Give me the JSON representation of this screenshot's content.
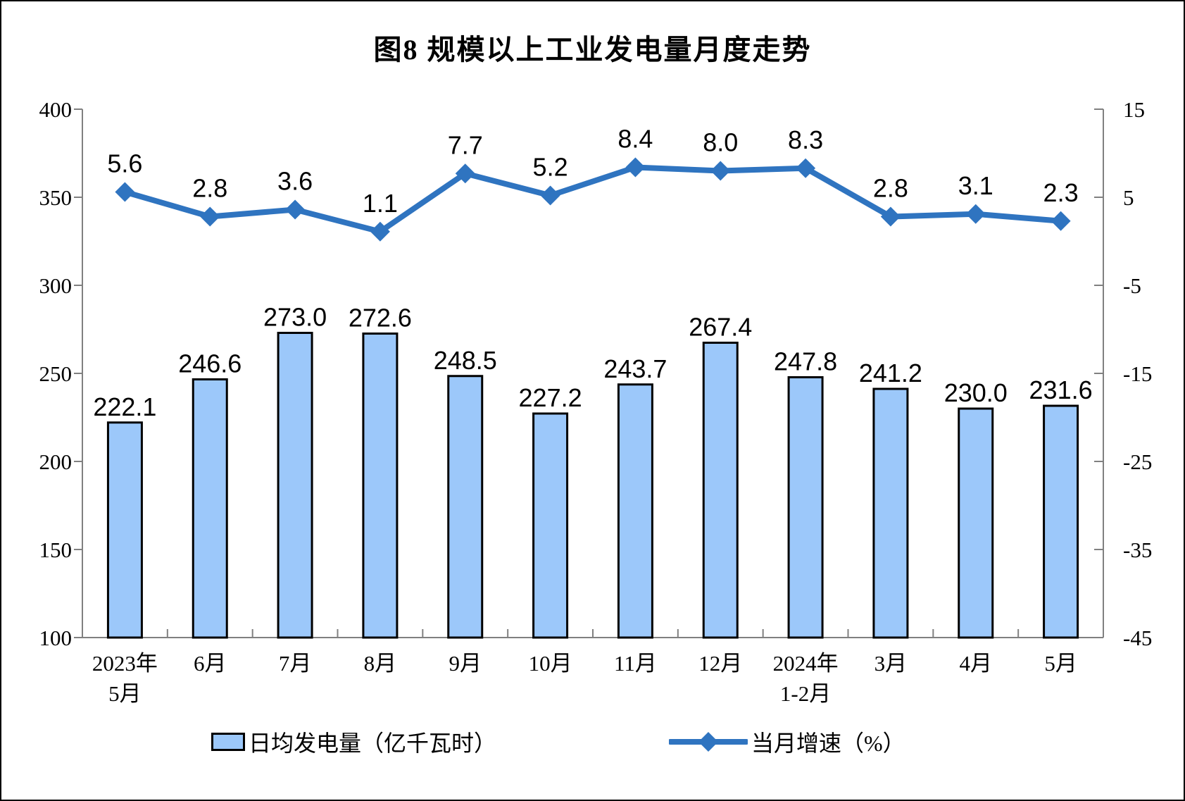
{
  "chart_data": {
    "type": "bar",
    "title": "图8 规模以上工业发电量月度走势",
    "categories": [
      "2023年\n5月",
      "6月",
      "7月",
      "8月",
      "9月",
      "10月",
      "11月",
      "12月",
      "2024年\n1-2月",
      "3月",
      "4月",
      "5月"
    ],
    "series": [
      {
        "name": "日均发电量（亿千瓦时）",
        "type": "bar",
        "axis": "left",
        "values": [
          222.1,
          246.6,
          273.0,
          272.6,
          248.5,
          227.2,
          243.7,
          267.4,
          247.8,
          241.2,
          230.0,
          231.6
        ]
      },
      {
        "name": "当月增速（%）",
        "type": "line",
        "axis": "right",
        "values": [
          5.6,
          2.8,
          3.6,
          1.1,
          7.7,
          5.2,
          8.4,
          8.0,
          8.3,
          2.8,
          3.1,
          2.3
        ]
      }
    ],
    "left_axis": {
      "min": 100,
      "max": 400,
      "step": 50,
      "ticks": [
        "400",
        "350",
        "300",
        "250",
        "200",
        "150",
        "100"
      ]
    },
    "right_axis": {
      "min": -45,
      "max": 15,
      "step": 10,
      "ticks": [
        "15",
        "5",
        "-5",
        "-15",
        "-25",
        "-35",
        "-45"
      ]
    },
    "grid": false,
    "legend_position": "bottom",
    "colors": {
      "bar_fill": "#9CC8FA",
      "bar_border": "#000000",
      "line": "#2F74C0",
      "axis": "#808080",
      "text": "#000000"
    }
  },
  "legend": {
    "bar_label": "日均发电量（亿千瓦时）",
    "line_label": "当月增速（%）"
  }
}
